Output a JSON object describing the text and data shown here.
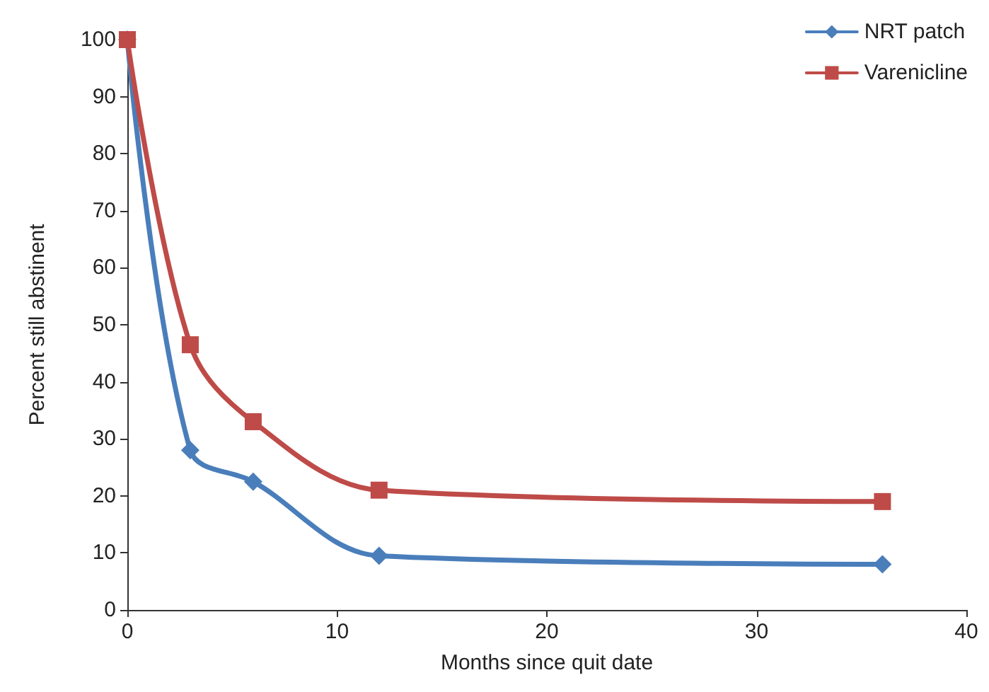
{
  "chart_data": {
    "type": "line",
    "xlabel": "Months since quit date",
    "ylabel": "Percent still abstinent",
    "xlim": [
      0,
      40
    ],
    "xticks": [
      0,
      10,
      20,
      30,
      40
    ],
    "ylim": [
      0,
      100
    ],
    "yticks": [
      0,
      10,
      20,
      30,
      40,
      50,
      60,
      70,
      80,
      90,
      100
    ],
    "grid": false,
    "legend": "top right",
    "line_style": "solid",
    "series": [
      {
        "name": "NRT patch",
        "color": "#4a7ebb",
        "marker": "diamond",
        "x": [
          0,
          3,
          6,
          12,
          36
        ],
        "values": [
          100,
          28,
          22.5,
          9.5,
          8
        ]
      },
      {
        "name": "Varenicline",
        "color": "#be4b48",
        "marker": "square",
        "x": [
          0,
          3,
          6,
          12,
          36
        ],
        "values": [
          100,
          46.5,
          33,
          21,
          19
        ]
      }
    ]
  }
}
